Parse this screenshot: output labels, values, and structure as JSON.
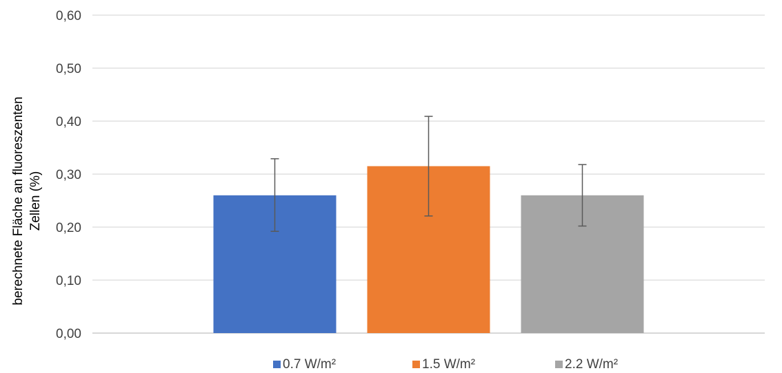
{
  "chart_data": {
    "type": "bar",
    "title": "",
    "xlabel": "",
    "ylabel_lines": [
      "berechnete Fläche an fluoreszenten",
      "Zellen (%)"
    ],
    "ylim": [
      0,
      0.6
    ],
    "yticks": [
      "0,00",
      "0,10",
      "0,20",
      "0,30",
      "0,40",
      "0,50",
      "0,60"
    ],
    "grid": true,
    "legend_position": "bottom",
    "series": [
      {
        "name": "0.7 W/m²",
        "value": 0.26,
        "error": [
          0.192,
          0.329
        ],
        "color": "#4472C4"
      },
      {
        "name": "1.5 W/m²",
        "value": 0.315,
        "error": [
          0.221,
          0.409
        ],
        "color": "#ED7D31"
      },
      {
        "name": "2.2 W/m²",
        "value": 0.26,
        "error": [
          0.202,
          0.318
        ],
        "color": "#A5A5A5"
      }
    ]
  }
}
